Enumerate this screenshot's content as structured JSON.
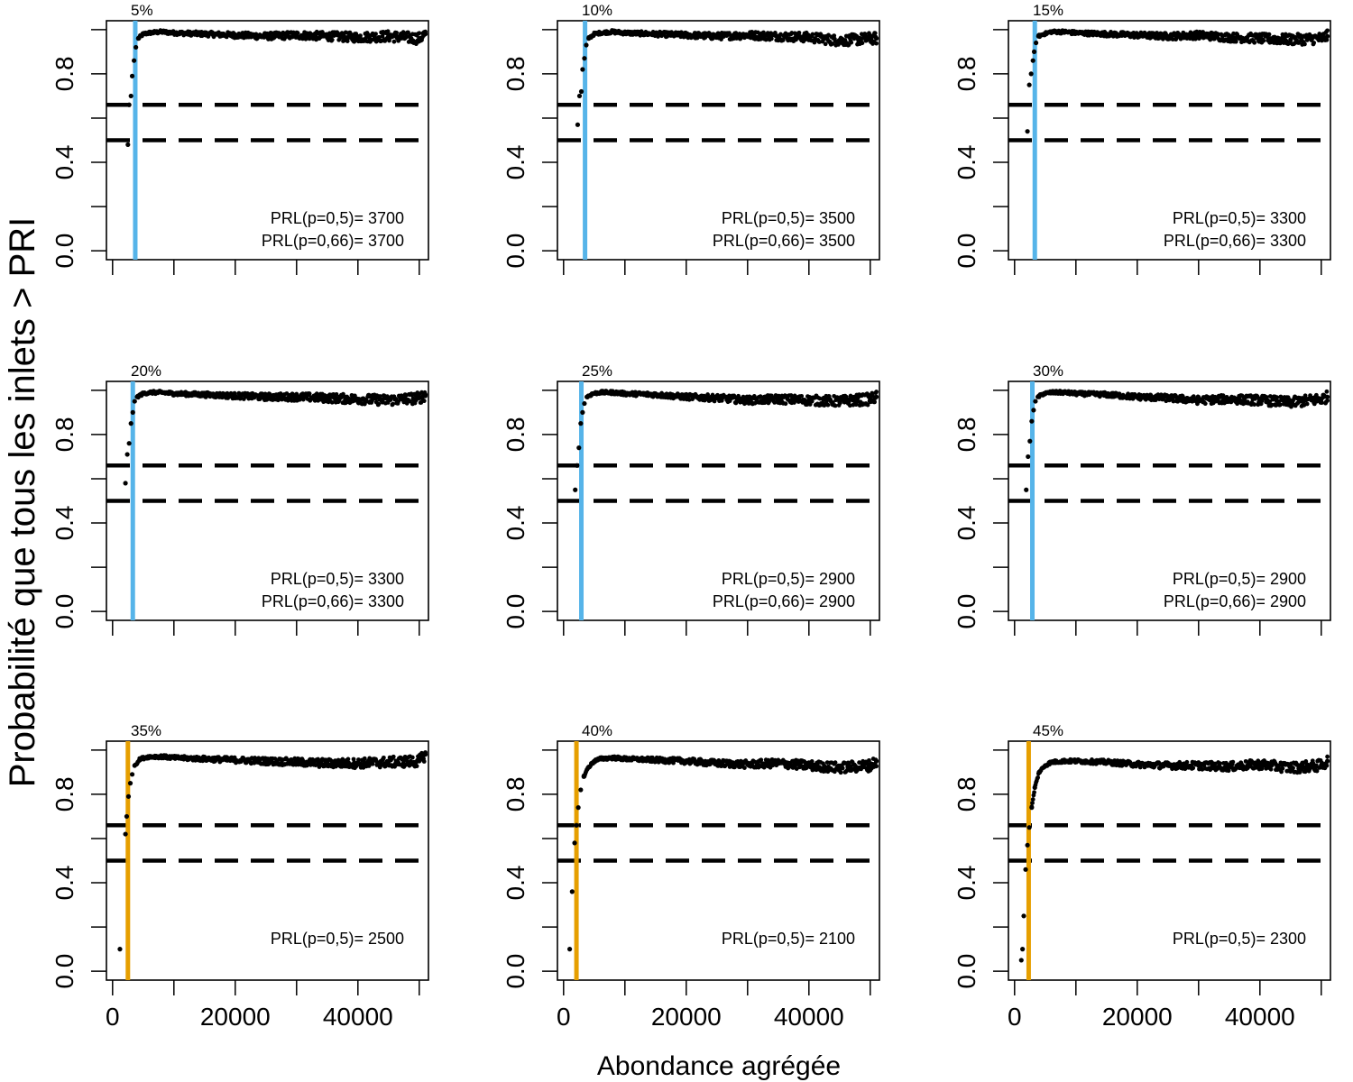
{
  "chart_data": {
    "type": "scatter",
    "ylabel": "Probabilité que tous les inlets > PRI",
    "xlabel": "Abondance agrégée",
    "xlim": [
      -1000,
      51500
    ],
    "ylim": [
      -0.04,
      1.04
    ],
    "xticks": [
      0,
      10000,
      20000,
      30000,
      40000,
      50000
    ],
    "xtick_labels": [
      "0",
      "",
      "20000",
      "",
      "40000",
      ""
    ],
    "yticks": [
      0.0,
      0.2,
      0.4,
      0.6,
      0.8,
      1.0
    ],
    "ytick_labels": [
      "0.0",
      "",
      "0.4",
      "",
      "0.8",
      ""
    ],
    "hlines": [
      0.5,
      0.66
    ],
    "line_colors": {
      "blue": "#56b4e9",
      "orange": "#e69f00"
    },
    "panels": [
      {
        "title": "5%",
        "vline": 3700,
        "vline_color": "#56b4e9",
        "prl_labels": [
          "PRL(p=0,5)=  3700",
          "PRL(p=0,66)=  3700"
        ],
        "show_xticks": false,
        "series": {
          "x": [
            2500,
            2700,
            3000,
            3200,
            3500,
            3800,
            4200,
            5000,
            6000,
            8000,
            10000,
            15000,
            20000,
            25000,
            30000,
            35000,
            40000,
            45000,
            50000,
            51000
          ],
          "y": [
            0.48,
            0.66,
            0.7,
            0.79,
            0.86,
            0.92,
            0.96,
            0.98,
            0.985,
            0.99,
            0.985,
            0.98,
            0.975,
            0.97,
            0.975,
            0.97,
            0.965,
            0.97,
            0.96,
            0.98
          ]
        }
      },
      {
        "title": "10%",
        "vline": 3500,
        "vline_color": "#56b4e9",
        "prl_labels": [
          "PRL(p=0,5)=  3500",
          "PRL(p=0,66)=  3500"
        ],
        "show_xticks": false,
        "series": {
          "x": [
            2300,
            2600,
            2900,
            3100,
            3400,
            3700,
            4100,
            5000,
            6000,
            8000,
            10000,
            15000,
            20000,
            25000,
            30000,
            35000,
            40000,
            45000,
            50000,
            51000
          ],
          "y": [
            0.57,
            0.7,
            0.72,
            0.82,
            0.87,
            0.93,
            0.96,
            0.98,
            0.985,
            0.99,
            0.985,
            0.98,
            0.975,
            0.97,
            0.975,
            0.97,
            0.965,
            0.95,
            0.96,
            0.96
          ]
        }
      },
      {
        "title": "15%",
        "vline": 3300,
        "vline_color": "#56b4e9",
        "prl_labels": [
          "PRL(p=0,5)=  3300",
          "PRL(p=0,66)=  3300"
        ],
        "show_xticks": false,
        "series": {
          "x": [
            2100,
            2400,
            2700,
            3000,
            3200,
            3500,
            3900,
            4800,
            6000,
            8000,
            10000,
            15000,
            20000,
            25000,
            30000,
            35000,
            40000,
            45000,
            50000,
            51000
          ],
          "y": [
            0.54,
            0.75,
            0.8,
            0.86,
            0.9,
            0.94,
            0.97,
            0.98,
            0.99,
            0.99,
            0.985,
            0.98,
            0.975,
            0.97,
            0.975,
            0.965,
            0.96,
            0.955,
            0.96,
            0.97
          ]
        }
      },
      {
        "title": "20%",
        "vline": 3300,
        "vline_color": "#56b4e9",
        "prl_labels": [
          "PRL(p=0,5)=  3300",
          "PRL(p=0,66)=  3300"
        ],
        "show_xticks": false,
        "series": {
          "x": [
            2100,
            2400,
            2700,
            3000,
            3300,
            3600,
            4000,
            5000,
            6000,
            8000,
            10000,
            15000,
            20000,
            25000,
            30000,
            35000,
            40000,
            45000,
            50000,
            51000
          ],
          "y": [
            0.58,
            0.71,
            0.76,
            0.85,
            0.9,
            0.95,
            0.97,
            0.985,
            0.99,
            0.99,
            0.985,
            0.98,
            0.975,
            0.97,
            0.97,
            0.965,
            0.96,
            0.955,
            0.965,
            0.98
          ]
        }
      },
      {
        "title": "25%",
        "vline": 2900,
        "vline_color": "#56b4e9",
        "prl_labels": [
          "PRL(p=0,5)=  2900",
          "PRL(p=0,66)=  2900"
        ],
        "show_xticks": false,
        "series": {
          "x": [
            1900,
            2200,
            2500,
            2800,
            3100,
            3400,
            3800,
            4800,
            6000,
            8000,
            10000,
            15000,
            20000,
            25000,
            30000,
            35000,
            40000,
            45000,
            50000,
            51000
          ],
          "y": [
            0.55,
            0.66,
            0.74,
            0.85,
            0.9,
            0.94,
            0.97,
            0.985,
            0.99,
            0.99,
            0.985,
            0.98,
            0.97,
            0.965,
            0.955,
            0.96,
            0.955,
            0.95,
            0.96,
            0.97
          ]
        }
      },
      {
        "title": "30%",
        "vline": 2900,
        "vline_color": "#56b4e9",
        "prl_labels": [
          "PRL(p=0,5)=  2900",
          "PRL(p=0,66)=  2900"
        ],
        "show_xticks": false,
        "series": {
          "x": [
            1900,
            2200,
            2500,
            2800,
            3100,
            3400,
            3800,
            4800,
            6000,
            8000,
            10000,
            15000,
            20000,
            25000,
            30000,
            35000,
            40000,
            45000,
            50000,
            51000
          ],
          "y": [
            0.55,
            0.7,
            0.77,
            0.86,
            0.91,
            0.95,
            0.97,
            0.985,
            0.99,
            0.99,
            0.985,
            0.98,
            0.97,
            0.965,
            0.955,
            0.96,
            0.955,
            0.945,
            0.96,
            0.97
          ]
        }
      },
      {
        "title": "35%",
        "vline": 2500,
        "vline_color": "#e69f00",
        "prl_labels": [
          "PRL(p=0,5)=  2500"
        ],
        "show_xticks": true,
        "series": {
          "x": [
            1200,
            2100,
            2300,
            2600,
            2900,
            3200,
            3600,
            4500,
            6000,
            8000,
            10000,
            15000,
            20000,
            25000,
            30000,
            35000,
            40000,
            45000,
            50000,
            51000
          ],
          "y": [
            0.1,
            0.62,
            0.7,
            0.79,
            0.85,
            0.89,
            0.93,
            0.96,
            0.97,
            0.97,
            0.965,
            0.96,
            0.955,
            0.95,
            0.945,
            0.94,
            0.94,
            0.945,
            0.95,
            0.98
          ]
        }
      },
      {
        "title": "40%",
        "vline": 2100,
        "vline_color": "#e69f00",
        "prl_labels": [
          "PRL(p=0,5)=  2100"
        ],
        "show_xticks": true,
        "series": {
          "x": [
            1000,
            1400,
            1800,
            2100,
            2400,
            2800,
            3300,
            4000,
            5000,
            6000,
            8000,
            10000,
            15000,
            20000,
            25000,
            30000,
            35000,
            40000,
            45000,
            50000,
            51000
          ],
          "y": [
            0.1,
            0.36,
            0.58,
            0.66,
            0.74,
            0.82,
            0.88,
            0.92,
            0.95,
            0.96,
            0.965,
            0.96,
            0.955,
            0.95,
            0.94,
            0.935,
            0.94,
            0.93,
            0.92,
            0.93,
            0.95
          ]
        }
      },
      {
        "title": "45%",
        "vline": 2300,
        "vline_color": "#e69f00",
        "prl_labels": [
          "PRL(p=0,5)=  2300"
        ],
        "show_xticks": true,
        "series": {
          "x": [
            1100,
            1300,
            1500,
            1800,
            2100,
            2400,
            2800,
            3300,
            4000,
            5000,
            6000,
            8000,
            10000,
            15000,
            20000,
            25000,
            30000,
            35000,
            40000,
            45000,
            50000,
            51000
          ],
          "y": [
            0.05,
            0.1,
            0.25,
            0.46,
            0.57,
            0.65,
            0.74,
            0.83,
            0.9,
            0.93,
            0.945,
            0.95,
            0.95,
            0.945,
            0.935,
            0.93,
            0.93,
            0.925,
            0.935,
            0.92,
            0.93,
            0.95
          ]
        }
      }
    ]
  }
}
